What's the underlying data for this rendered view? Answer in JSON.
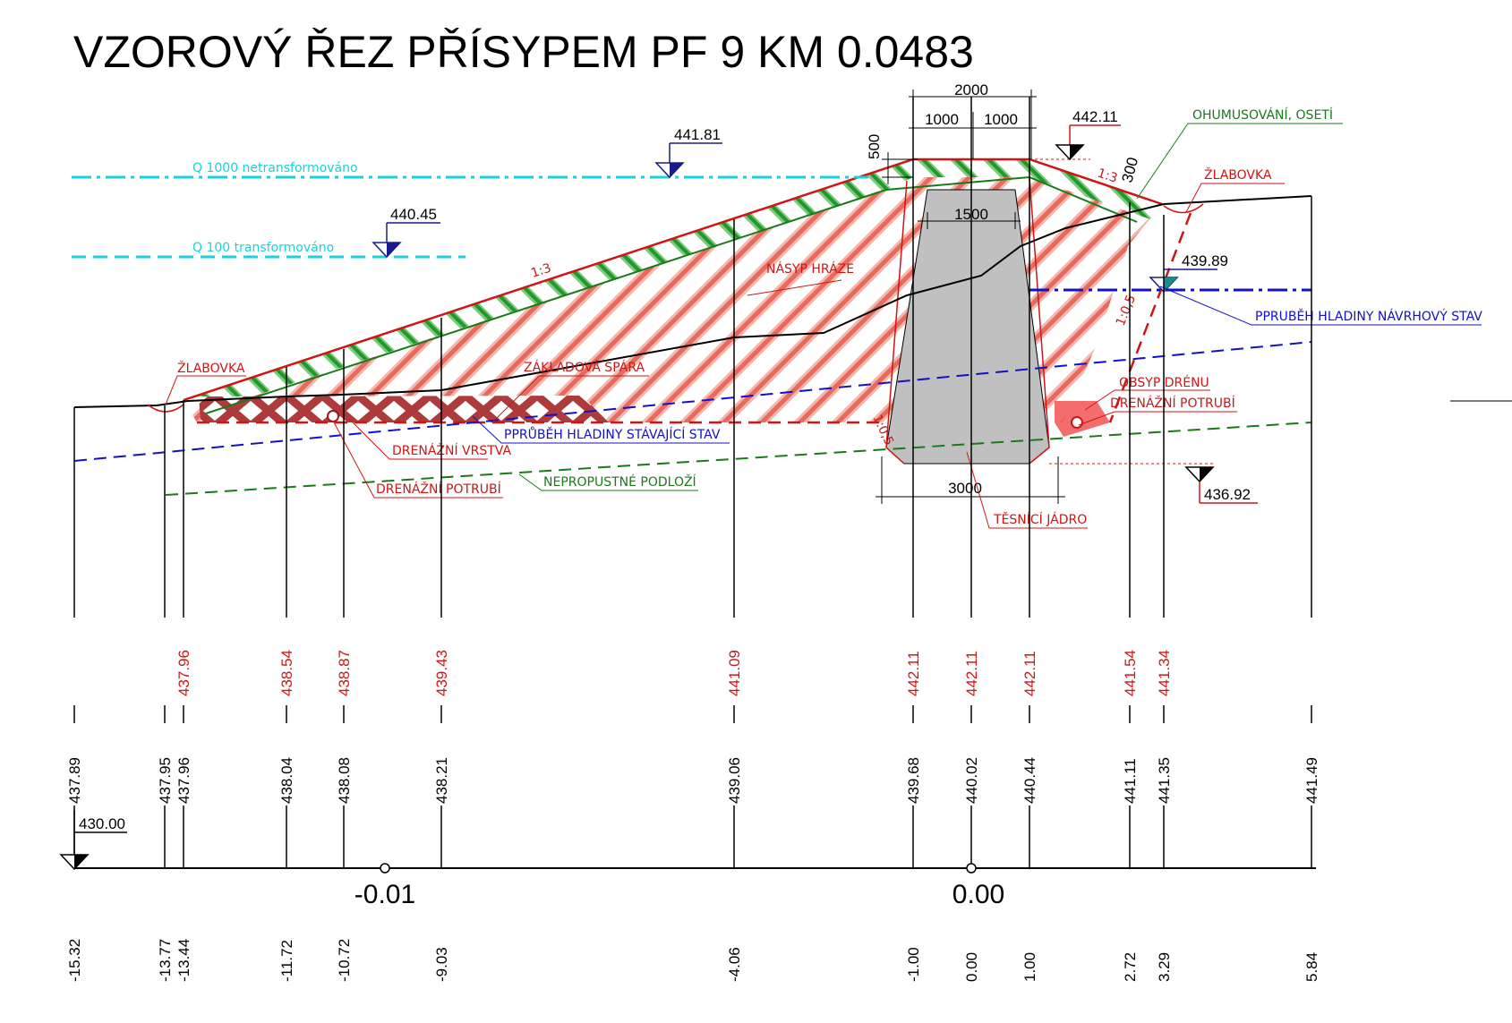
{
  "title": "VZOROVÝ ŘEZ PŘÍSYPEM PF 9  KM 0.0483",
  "water_levels": {
    "q1000_label": "Q 1000 netransformováno",
    "q1000_elev": "441.81",
    "q100_label": "Q 100 transformováno",
    "q100_elev": "440.45",
    "design_elev": "439.89",
    "crest_elev": "442.11",
    "core_base_elev": "436.92"
  },
  "dimensions": {
    "crest_width": "2000",
    "half_left": "1000",
    "half_right": "1000",
    "topsoil_depth": "500",
    "slope_topsoil": "300",
    "core_top_width": "1500",
    "core_base_width": "3000",
    "slope_upstream": "1:3",
    "slope_downstream": "1:3",
    "slope_core_left": "1:0,5",
    "slope_drain": "1:0,5"
  },
  "labels": {
    "ohumusovani": "OHUMUSOVÁNÍ, OSETÍ",
    "zlabovka_right": "ŽLABOVKA",
    "zlabovka_left": "ŽLABOVKA",
    "prubeh_navrh": "PPRUBĚH HLADINY NÁVRHOVÝ STAV",
    "nasyp": "NÁSYP HRÁZE",
    "zakladova": "ZÁKLADOVÁ SPÁRA",
    "prubeh_stav": "PPRŮBĚH HLADINY STÁVAJÍCÍ STAV",
    "drenazni_vrstva": "DRENÁŽNÍ VRSTVA",
    "drenazni_potrubi_left": "DRENÁŽNÍ POTRUBÍ",
    "nepropustne": "NEPROPUSTNÉ PODLOŽÍ",
    "obsyp": "OBSYP DRÉNU",
    "drenazni_potrubi_right": "DRENÁŽNÍ POTRUBÍ",
    "tesnici": "TĚSNÍCÍ JÁDRO"
  },
  "profile_table": {
    "datum": "430.00",
    "design_elevations": [
      "437.96",
      "438.54",
      "438.87",
      "439.43",
      "441.09",
      "442.11",
      "442.11",
      "442.11",
      "441.54",
      "441.34"
    ],
    "terrain_elevations": [
      "437.89",
      "437.95",
      "437.96",
      "438.04",
      "438.08",
      "438.21",
      "439.06",
      "439.68",
      "440.02",
      "440.44",
      "441.11",
      "441.35",
      "441.49"
    ],
    "distances": [
      "-15.32",
      "-13.77",
      "-13.44",
      "-11.72",
      "-10.72",
      "-9.03",
      "-4.06",
      "-1.00",
      "0.00",
      "1.00",
      "2.72",
      "3.29",
      "5.84"
    ],
    "axis_markers": [
      "-0.01",
      "0.00"
    ]
  },
  "colors": {
    "fill_hatch": "#e8392c",
    "core": "#c0c0c0",
    "cyan": "#19d2dc",
    "blue": "#1111c8",
    "dark_blue": "#1a1a8c",
    "green": "#1a7a1a",
    "red": "#d01515"
  }
}
